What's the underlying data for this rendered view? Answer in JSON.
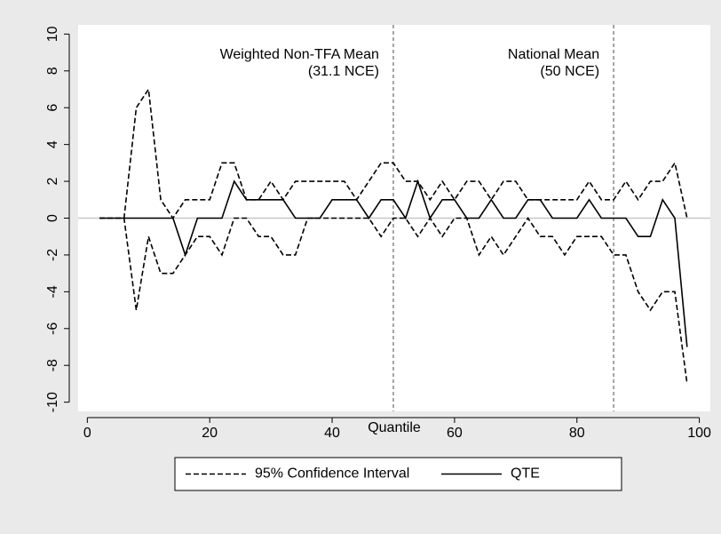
{
  "chart_data": {
    "type": "line",
    "x_label": "Quantile",
    "x": [
      2,
      4,
      6,
      8,
      10,
      12,
      14,
      16,
      18,
      20,
      22,
      24,
      26,
      28,
      30,
      32,
      34,
      36,
      38,
      40,
      42,
      44,
      46,
      48,
      50,
      52,
      54,
      56,
      58,
      60,
      62,
      64,
      66,
      68,
      70,
      72,
      74,
      76,
      78,
      80,
      82,
      84,
      86,
      88,
      90,
      92,
      94,
      96,
      98
    ],
    "series": [
      {
        "name": "95% Confidence Interval",
        "color": "#000000",
        "dashed": true,
        "upper": [
          0,
          0,
          0,
          6,
          7,
          1,
          0,
          1,
          1,
          1,
          3,
          3,
          1,
          1,
          2,
          1,
          2,
          2,
          2,
          2,
          2,
          1,
          2,
          3,
          3,
          2,
          2,
          1,
          2,
          1,
          2,
          2,
          1,
          2,
          2,
          1,
          1,
          1,
          1,
          1,
          2,
          1,
          1,
          2,
          1,
          2,
          2,
          3,
          0
        ],
        "lower": [
          0,
          0,
          0,
          -5,
          -1,
          -3,
          -3,
          -2,
          -1,
          -1,
          -2,
          0,
          0,
          -1,
          -1,
          -2,
          -2,
          0,
          0,
          0,
          0,
          0,
          0,
          -1,
          0,
          0,
          -1,
          0,
          -1,
          0,
          0,
          -2,
          -1,
          -2,
          -1,
          0,
          -1,
          -1,
          -2,
          -1,
          -1,
          -1,
          -2,
          -2,
          -4,
          -5,
          -4,
          -4,
          -9
        ]
      },
      {
        "name": "QTE",
        "color": "#000000",
        "dashed": false,
        "values": [
          0,
          0,
          0,
          0,
          0,
          0,
          0,
          -2,
          0,
          0,
          0,
          2,
          1,
          1,
          1,
          1,
          0,
          0,
          0,
          1,
          1,
          1,
          0,
          1,
          1,
          0,
          2,
          0,
          1,
          1,
          0,
          0,
          1,
          0,
          0,
          1,
          1,
          0,
          0,
          0,
          1,
          0,
          0,
          0,
          -1,
          -1,
          1,
          0,
          -7
        ]
      }
    ],
    "reference_lines": [
      {
        "x": 50,
        "label": [
          "Weighted Non-TFA Mean",
          "(31.1 NCE)"
        ]
      },
      {
        "x": 86,
        "label": [
          "National Mean",
          "(50 NCE)"
        ]
      }
    ],
    "xlim": [
      -1.5,
      101.8
    ],
    "ylim": [
      -10.5,
      10.5
    ],
    "xticks": [
      0,
      20,
      40,
      60,
      80,
      100
    ],
    "yticks": [
      -10,
      -8,
      -6,
      -4,
      -2,
      0,
      2,
      4,
      6,
      8,
      10
    ],
    "legend": "bottom"
  }
}
